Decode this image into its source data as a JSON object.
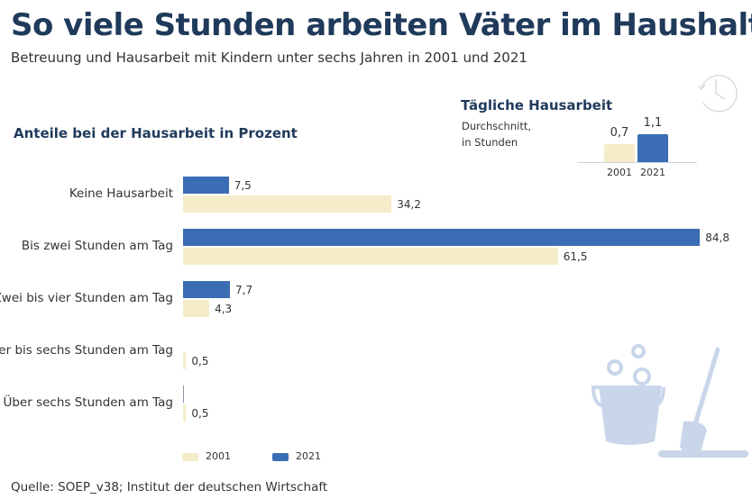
{
  "title": "So viele Stunden arbeiten Väter im Haushalt",
  "subtitle": "Betreuung und Hausarbeit mit Kindern unter sechs Jahren in 2001 und 2021",
  "source": "Quelle: SOEP_v38; Institut der deutschen Wirtschaft",
  "colors": {
    "2001": "#f5ecc9",
    "2021": "#3a6db3",
    "title": "#1f3a5a",
    "icon": "#c9d6ea"
  },
  "icons": [
    "clock-icon",
    "bucket-icon",
    "mop-icon"
  ],
  "chart_data": [
    {
      "type": "bar",
      "orientation": "horizontal",
      "title": "Anteile bei der Hausarbeit in Prozent",
      "categories": [
        "Keine Hausarbeit",
        "Bis zwei Stunden am Tag",
        "Zwei bis vier Stunden am Tag",
        "Vier bis sechs Stunden am Tag",
        "Über sechs Stunden am Tag"
      ],
      "series": [
        {
          "name": "2021",
          "values": [
            7.5,
            84.8,
            7.7,
            null,
            0
          ],
          "labels": [
            "7,5",
            "84,8",
            "7,7",
            "",
            ""
          ]
        },
        {
          "name": "2001",
          "values": [
            34.2,
            61.5,
            4.3,
            0.5,
            0.5
          ],
          "labels": [
            "34,2",
            "61,5",
            "4,3",
            "0,5",
            "0,5"
          ]
        }
      ],
      "legend": [
        "2001",
        "2021"
      ],
      "legend_position": "bottom",
      "xlim": [
        0,
        100
      ],
      "grid": false
    },
    {
      "type": "bar",
      "title": "Tägliche Hausarbeit",
      "subtitle": [
        "Durchschnitt,",
        "in Stunden"
      ],
      "categories": [
        "2001",
        "2021"
      ],
      "values": [
        0.7,
        1.1
      ],
      "labels": [
        "0,7",
        "1,1"
      ]
    }
  ]
}
